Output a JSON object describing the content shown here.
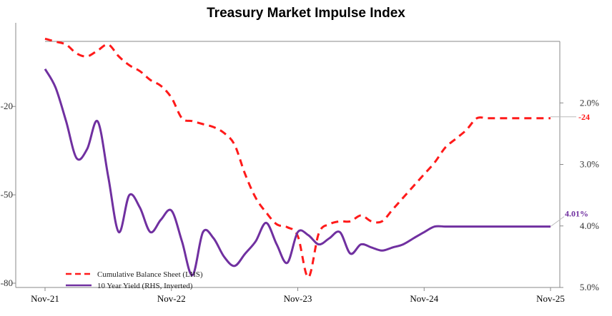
{
  "colors": {
    "balance": "#ff1a1a",
    "yield": "#7030a0",
    "axis": "#888888",
    "leader": "#bbbbbb"
  },
  "chart_data": {
    "type": "line",
    "title": "Treasury Market Impulse Index",
    "x_ticks": [
      "Nov-21",
      "Nov-22",
      "Nov-23",
      "Nov-24",
      "Nov-25"
    ],
    "x_range": [
      0,
      48
    ],
    "left_axis": {
      "min": -80,
      "max": 5,
      "ticks": [
        -20,
        -50,
        -80
      ]
    },
    "right_axis": {
      "min": 1.0,
      "max": 5.0,
      "inverted": true,
      "ticks": [
        "2.0%",
        "3.0%",
        "4.0%",
        "5.0%"
      ],
      "tick_values": [
        2.0,
        3.0,
        4.0,
        5.0
      ]
    },
    "legend": {
      "balance_label": "Cumulative Balance Sheet (LHS)",
      "yield_label": "10 Year Yield (RHS, Inverted)"
    },
    "end_labels": {
      "balance": "-24",
      "yield": "4.01%"
    },
    "series": [
      {
        "name": "Cumulative Balance Sheet (LHS)",
        "axis": "left",
        "style": "dashed",
        "x": [
          0,
          1,
          2,
          3,
          4,
          5,
          6,
          7,
          8,
          9,
          10,
          11,
          12,
          13,
          14,
          15,
          16,
          17,
          18,
          19,
          20,
          21,
          22,
          23,
          24,
          25,
          26,
          27,
          28,
          29,
          30,
          31,
          32,
          33,
          34,
          35,
          36,
          37,
          38,
          39,
          40,
          41,
          42,
          43,
          44,
          45,
          46,
          47,
          48
        ],
        "values": [
          3,
          2,
          1,
          -2,
          -3,
          -1,
          1,
          -3,
          -6,
          -8,
          -11,
          -13,
          -17,
          -24,
          -25,
          -26,
          -27,
          -29,
          -33,
          -43,
          -51,
          -56,
          -60,
          -61,
          -64,
          -78,
          -63,
          -60,
          -59,
          -59,
          -57,
          -59,
          -59,
          -55,
          -51,
          -47,
          -43,
          -39,
          -34,
          -31,
          -28,
          -24,
          -24,
          -24,
          -24,
          -24,
          -24,
          -24,
          -24
        ]
      },
      {
        "name": "10 Year Yield (RHS, Inverted)",
        "axis": "right",
        "style": "solid",
        "x": [
          0,
          1,
          2,
          3,
          4,
          5,
          6,
          7,
          8,
          9,
          10,
          11,
          12,
          13,
          14,
          15,
          16,
          17,
          18,
          19,
          20,
          21,
          22,
          23,
          24,
          25,
          26,
          27,
          28,
          29,
          30,
          31,
          32,
          33,
          34,
          35,
          36,
          37,
          38,
          39,
          40,
          41,
          42,
          43,
          44,
          45,
          46,
          47,
          48
        ],
        "values": [
          1.45,
          1.75,
          2.3,
          2.9,
          2.75,
          2.3,
          3.2,
          4.1,
          3.5,
          3.7,
          4.1,
          3.9,
          3.75,
          4.25,
          4.8,
          4.1,
          4.2,
          4.5,
          4.65,
          4.45,
          4.25,
          3.95,
          4.3,
          4.6,
          4.1,
          4.15,
          4.3,
          4.2,
          4.1,
          4.45,
          4.3,
          4.35,
          4.4,
          4.35,
          4.3,
          4.2,
          4.1,
          4.01,
          4.01,
          4.01,
          4.01,
          4.01,
          4.01,
          4.01,
          4.01,
          4.01,
          4.01,
          4.01,
          4.01
        ]
      }
    ]
  }
}
